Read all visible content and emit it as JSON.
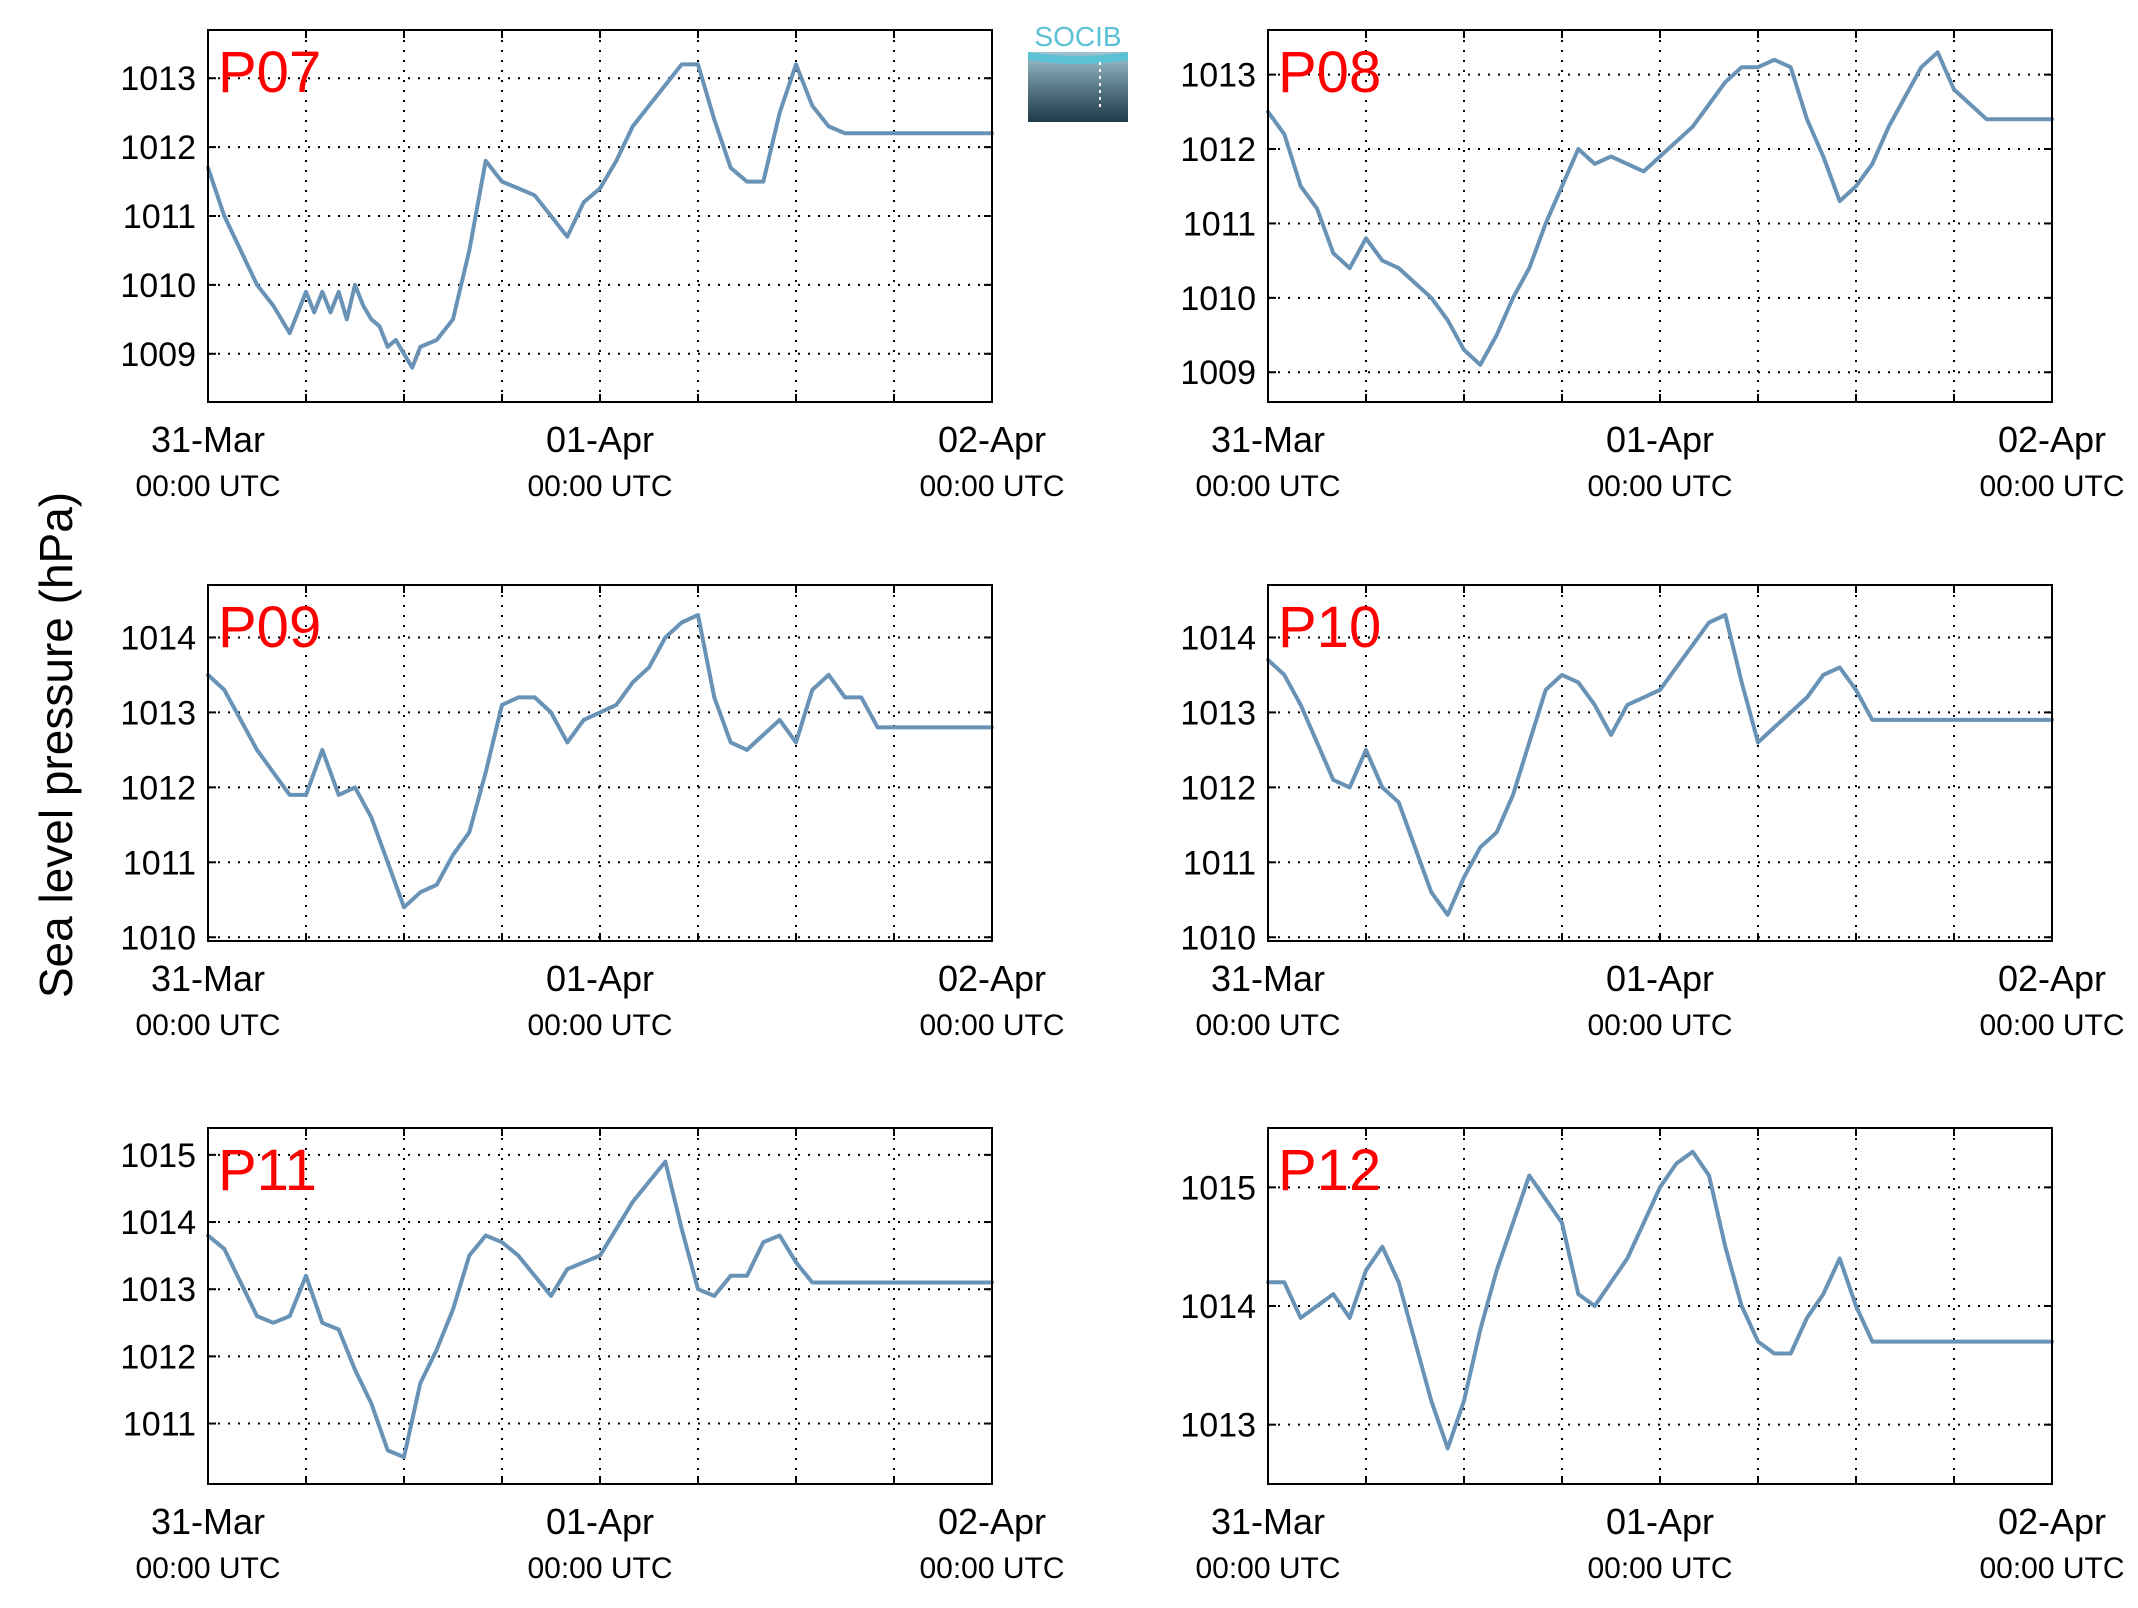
{
  "figure": {
    "ylabel": "Sea level pressure (hPa)",
    "logo_text": "SOCIB"
  },
  "colors": {
    "line": "#6993b6",
    "station_label": "#ff0000",
    "grid": "#000000",
    "axes": "#000000",
    "logo_top": "#5bc1d4",
    "logo_bottom": "#1f3a48"
  },
  "chart_data": [
    {
      "type": "line",
      "title": "P07",
      "x_ticks": [
        {
          "x": 0,
          "date": "31-Mar",
          "time": "00:00 UTC"
        },
        {
          "x": 24,
          "date": "01-Apr",
          "time": "00:00 UTC"
        },
        {
          "x": 48,
          "date": "02-Apr",
          "time": "00:00 UTC"
        }
      ],
      "xlim": [
        0,
        48
      ],
      "ylim": [
        1008.3,
        1013.7
      ],
      "yticks": [
        1009,
        1010,
        1011,
        1012,
        1013
      ],
      "grid": true,
      "series": [
        {
          "x": [
            0,
            1,
            2,
            3,
            4,
            5,
            6,
            6.5,
            7,
            7.5,
            8,
            8.5,
            9,
            9.5,
            10,
            10.5,
            11,
            11.5,
            12,
            12.5,
            13,
            14,
            15,
            16,
            17,
            18,
            19,
            20,
            21,
            22,
            23,
            24,
            25,
            26,
            27,
            28,
            29,
            30,
            31,
            32,
            33,
            34,
            35,
            36,
            37,
            38,
            39,
            40,
            41,
            42,
            43,
            44,
            45,
            46,
            47,
            48
          ],
          "y": [
            1011.7,
            1011.0,
            1010.5,
            1010.0,
            1009.7,
            1009.3,
            1009.9,
            1009.6,
            1009.9,
            1009.6,
            1009.9,
            1009.5,
            1010.0,
            1009.7,
            1009.5,
            1009.4,
            1009.1,
            1009.2,
            1009.0,
            1008.8,
            1009.1,
            1009.2,
            1009.5,
            1010.5,
            1011.8,
            1011.5,
            1011.4,
            1011.3,
            1011.0,
            1010.7,
            1011.2,
            1011.4,
            1011.8,
            1012.3,
            1012.6,
            1012.9,
            1013.2,
            1013.2,
            1012.4,
            1011.7,
            1011.5,
            1011.5,
            1012.5,
            1013.2,
            1012.6,
            1012.3,
            1012.2,
            1012.2,
            1012.2,
            1012.2,
            1012.2,
            1012.2,
            1012.2,
            1012.2,
            1012.2,
            1012.2
          ]
        }
      ]
    },
    {
      "type": "line",
      "title": "P08",
      "x_ticks": [
        {
          "x": 0,
          "date": "31-Mar",
          "time": "00:00 UTC"
        },
        {
          "x": 24,
          "date": "01-Apr",
          "time": "00:00 UTC"
        },
        {
          "x": 48,
          "date": "02-Apr",
          "time": "00:00 UTC"
        }
      ],
      "xlim": [
        0,
        48
      ],
      "ylim": [
        1008.6,
        1013.6
      ],
      "yticks": [
        1009,
        1010,
        1011,
        1012,
        1013
      ],
      "grid": true,
      "series": [
        {
          "x": [
            0,
            1,
            2,
            3,
            4,
            5,
            6,
            7,
            8,
            9,
            10,
            11,
            12,
            13,
            14,
            15,
            16,
            17,
            18,
            19,
            20,
            21,
            22,
            23,
            24,
            25,
            26,
            27,
            28,
            29,
            30,
            31,
            32,
            33,
            34,
            35,
            36,
            37,
            38,
            39,
            40,
            41,
            42,
            43,
            44,
            45,
            46,
            47,
            48
          ],
          "y": [
            1012.5,
            1012.2,
            1011.5,
            1011.2,
            1010.6,
            1010.4,
            1010.8,
            1010.5,
            1010.4,
            1010.2,
            1010.0,
            1009.7,
            1009.3,
            1009.1,
            1009.5,
            1010.0,
            1010.4,
            1011.0,
            1011.5,
            1012.0,
            1011.8,
            1011.9,
            1011.8,
            1011.7,
            1011.9,
            1012.1,
            1012.3,
            1012.6,
            1012.9,
            1013.1,
            1013.1,
            1013.2,
            1013.1,
            1012.4,
            1011.9,
            1011.3,
            1011.5,
            1011.8,
            1012.3,
            1012.7,
            1013.1,
            1013.3,
            1012.8,
            1012.6,
            1012.4,
            1012.4,
            1012.4,
            1012.4,
            1012.4
          ]
        }
      ]
    },
    {
      "type": "line",
      "title": "P09",
      "x_ticks": [
        {
          "x": 0,
          "date": "31-Mar",
          "time": "00:00 UTC"
        },
        {
          "x": 24,
          "date": "01-Apr",
          "time": "00:00 UTC"
        },
        {
          "x": 48,
          "date": "02-Apr",
          "time": "00:00 UTC"
        }
      ],
      "xlim": [
        0,
        48
      ],
      "ylim": [
        1009.95,
        1014.7
      ],
      "yticks": [
        1010,
        1011,
        1012,
        1013,
        1014
      ],
      "grid": true,
      "series": [
        {
          "x": [
            0,
            1,
            2,
            3,
            4,
            5,
            6,
            7,
            8,
            9,
            10,
            11,
            12,
            13,
            14,
            15,
            16,
            17,
            18,
            19,
            20,
            21,
            22,
            23,
            24,
            25,
            26,
            27,
            28,
            29,
            30,
            31,
            32,
            33,
            34,
            35,
            36,
            37,
            38,
            39,
            40,
            41,
            42,
            43,
            44,
            45,
            46,
            47,
            48
          ],
          "y": [
            1013.5,
            1013.3,
            1012.9,
            1012.5,
            1012.2,
            1011.9,
            1011.9,
            1012.5,
            1011.9,
            1012.0,
            1011.6,
            1011.0,
            1010.4,
            1010.6,
            1010.7,
            1011.1,
            1011.4,
            1012.2,
            1013.1,
            1013.2,
            1013.2,
            1013.0,
            1012.6,
            1012.9,
            1013.0,
            1013.1,
            1013.4,
            1013.6,
            1014.0,
            1014.2,
            1014.3,
            1013.2,
            1012.6,
            1012.5,
            1012.7,
            1012.9,
            1012.6,
            1013.3,
            1013.5,
            1013.2,
            1013.2,
            1012.8,
            1012.8,
            1012.8,
            1012.8,
            1012.8,
            1012.8,
            1012.8,
            1012.8
          ]
        }
      ]
    },
    {
      "type": "line",
      "title": "P10",
      "x_ticks": [
        {
          "x": 0,
          "date": "31-Mar",
          "time": "00:00 UTC"
        },
        {
          "x": 24,
          "date": "01-Apr",
          "time": "00:00 UTC"
        },
        {
          "x": 48,
          "date": "02-Apr",
          "time": "00:00 UTC"
        }
      ],
      "xlim": [
        0,
        48
      ],
      "ylim": [
        1009.95,
        1014.7
      ],
      "yticks": [
        1010,
        1011,
        1012,
        1013,
        1014
      ],
      "grid": true,
      "series": [
        {
          "x": [
            0,
            1,
            2,
            3,
            4,
            5,
            6,
            7,
            8,
            9,
            10,
            11,
            12,
            13,
            14,
            15,
            16,
            17,
            18,
            19,
            20,
            21,
            22,
            23,
            24,
            25,
            26,
            27,
            28,
            29,
            30,
            31,
            32,
            33,
            34,
            35,
            36,
            37,
            38,
            39,
            40,
            41,
            42,
            43,
            44,
            45,
            46,
            47,
            48
          ],
          "y": [
            1013.7,
            1013.5,
            1013.1,
            1012.6,
            1012.1,
            1012.0,
            1012.5,
            1012.0,
            1011.8,
            1011.2,
            1010.6,
            1010.3,
            1010.8,
            1011.2,
            1011.4,
            1011.9,
            1012.6,
            1013.3,
            1013.5,
            1013.4,
            1013.1,
            1012.7,
            1013.1,
            1013.2,
            1013.3,
            1013.6,
            1013.9,
            1014.2,
            1014.3,
            1013.4,
            1012.6,
            1012.8,
            1013.0,
            1013.2,
            1013.5,
            1013.6,
            1013.3,
            1012.9,
            1012.9,
            1012.9,
            1012.9,
            1012.9,
            1012.9,
            1012.9,
            1012.9,
            1012.9,
            1012.9,
            1012.9,
            1012.9
          ]
        }
      ]
    },
    {
      "type": "line",
      "title": "P11",
      "x_ticks": [
        {
          "x": 0,
          "date": "31-Mar",
          "time": "00:00 UTC"
        },
        {
          "x": 24,
          "date": "01-Apr",
          "time": "00:00 UTC"
        },
        {
          "x": 48,
          "date": "02-Apr",
          "time": "00:00 UTC"
        }
      ],
      "xlim": [
        0,
        48
      ],
      "ylim": [
        1010.1,
        1015.4
      ],
      "yticks": [
        1011,
        1012,
        1013,
        1014,
        1015
      ],
      "grid": true,
      "series": [
        {
          "x": [
            0,
            1,
            2,
            3,
            4,
            5,
            6,
            7,
            8,
            9,
            10,
            11,
            12,
            13,
            14,
            15,
            16,
            17,
            18,
            19,
            20,
            21,
            22,
            23,
            24,
            25,
            26,
            27,
            28,
            29,
            30,
            31,
            32,
            33,
            34,
            35,
            36,
            37,
            38,
            39,
            40,
            41,
            42,
            43,
            44,
            45,
            46,
            47,
            48
          ],
          "y": [
            1013.8,
            1013.6,
            1013.1,
            1012.6,
            1012.5,
            1012.6,
            1013.2,
            1012.5,
            1012.4,
            1011.8,
            1011.3,
            1010.6,
            1010.5,
            1011.6,
            1012.1,
            1012.7,
            1013.5,
            1013.8,
            1013.7,
            1013.5,
            1013.2,
            1012.9,
            1013.3,
            1013.4,
            1013.5,
            1013.9,
            1014.3,
            1014.6,
            1014.9,
            1013.9,
            1013.0,
            1012.9,
            1013.2,
            1013.2,
            1013.7,
            1013.8,
            1013.4,
            1013.1,
            1013.1,
            1013.1,
            1013.1,
            1013.1,
            1013.1,
            1013.1,
            1013.1,
            1013.1,
            1013.1,
            1013.1,
            1013.1
          ]
        }
      ]
    },
    {
      "type": "line",
      "title": "P12",
      "x_ticks": [
        {
          "x": 0,
          "date": "31-Mar",
          "time": "00:00 UTC"
        },
        {
          "x": 24,
          "date": "01-Apr",
          "time": "00:00 UTC"
        },
        {
          "x": 48,
          "date": "02-Apr",
          "time": "00:00 UTC"
        }
      ],
      "xlim": [
        0,
        48
      ],
      "ylim": [
        1012.5,
        1015.5
      ],
      "yticks": [
        1013,
        1014,
        1015
      ],
      "grid": true,
      "series": [
        {
          "x": [
            0,
            1,
            2,
            3,
            4,
            5,
            6,
            7,
            8,
            9,
            10,
            11,
            12,
            13,
            14,
            15,
            16,
            17,
            18,
            19,
            20,
            21,
            22,
            23,
            24,
            25,
            26,
            27,
            28,
            29,
            30,
            31,
            32,
            33,
            34,
            35,
            36,
            37,
            38,
            39,
            40,
            41,
            42,
            43,
            44,
            45,
            46,
            47,
            48
          ],
          "y": [
            1014.2,
            1014.2,
            1013.9,
            1014.0,
            1014.1,
            1013.9,
            1014.3,
            1014.5,
            1014.2,
            1013.7,
            1013.2,
            1012.8,
            1013.2,
            1013.8,
            1014.3,
            1014.7,
            1015.1,
            1014.9,
            1014.7,
            1014.1,
            1014.0,
            1014.2,
            1014.4,
            1014.7,
            1015.0,
            1015.2,
            1015.3,
            1015.1,
            1014.5,
            1014.0,
            1013.7,
            1013.6,
            1013.6,
            1013.9,
            1014.1,
            1014.4,
            1014.0,
            1013.7,
            1013.7,
            1013.7,
            1013.7,
            1013.7,
            1013.7,
            1013.7,
            1013.7,
            1013.7,
            1013.7,
            1013.7,
            1013.7
          ]
        }
      ]
    }
  ]
}
